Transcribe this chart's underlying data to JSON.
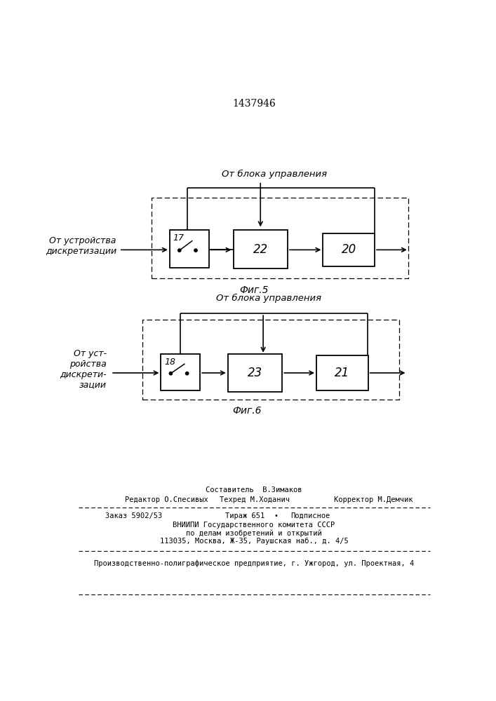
{
  "title_number": "1437946",
  "fig5_label": "Фиг.5",
  "fig6_label": "Фиг.6",
  "fig5_top_label": "От блока управления",
  "fig5_left_label": "От устройства\nдискретизации",
  "fig6_top_label": "От блока управления",
  "fig6_left_label": "От уст-\nройства\nдискрети-\nзации",
  "box17_label": "17",
  "box22_label": "22",
  "box20_label": "20",
  "box18_label": "18",
  "box23_label": "23",
  "box21_label": "21",
  "footer_line1": "Составитель  В.Зимаков",
  "footer_line2a": "Редактор О.Спесивых",
  "footer_line2b": "Техред М.Ходанич",
  "footer_line2c": "Корректор М.Демчик",
  "footer_line3a": "Заказ 5902/53",
  "footer_line3b": "Тираж 651",
  "footer_line3c": "Подписное",
  "footer_line4": "ВНИИПИ Государственного комитета СССР",
  "footer_line5": "по делам изобретений и открытий",
  "footer_line6": "113035, Москва, Ж-35, Раушская наб., д. 4/5",
  "footer_line7": "Производственно-полиграфическое предприятие, г. Ужгород, ул. Проектная, 4",
  "bg_color": "#ffffff",
  "line_color": "#000000"
}
